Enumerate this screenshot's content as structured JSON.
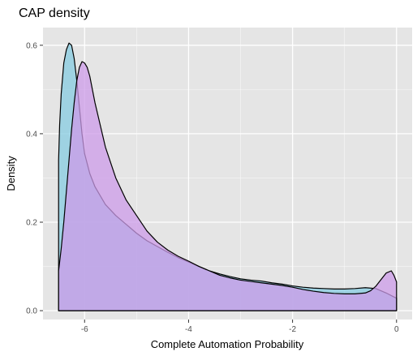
{
  "chart_data": {
    "type": "area",
    "title": "CAP density",
    "xlabel": "Complete Automation Probability",
    "ylabel": "Density",
    "xlim": [
      -6.8,
      0.3
    ],
    "ylim": [
      -0.02,
      0.64
    ],
    "x_ticks": [
      -6,
      -4,
      -2,
      0
    ],
    "x_tick_labels": [
      "-6",
      "-4",
      "-2",
      "0"
    ],
    "y_ticks": [
      0,
      0.2,
      0.4,
      0.6
    ],
    "y_tick_labels": [
      "0.0",
      "0.2",
      "0.4",
      "0.6"
    ],
    "grid": true,
    "legend": "none",
    "colors": {
      "panel": "#e5e5e5",
      "grid_major": "#ffffff",
      "series_a_fill": "#86cbe0",
      "series_b_fill": "#cc9be8",
      "overlap_fill": "#9b9ee6",
      "outline": "#000000"
    },
    "series": [
      {
        "x": [
          -6.5,
          -6.48,
          -6.45,
          -6.4,
          -6.35,
          -6.3,
          -6.25,
          -6.2,
          -6.15,
          -6.1,
          -6.05,
          -6.0,
          -5.9,
          -5.8,
          -5.6,
          -5.4,
          -5.2,
          -5.0,
          -4.8,
          -4.6,
          -4.4,
          -4.2,
          -4.0,
          -3.8,
          -3.6,
          -3.4,
          -3.2,
          -3.0,
          -2.8,
          -2.6,
          -2.4,
          -2.2,
          -2.0,
          -1.8,
          -1.6,
          -1.4,
          -1.2,
          -1.0,
          -0.8,
          -0.6,
          -0.4,
          -0.2,
          0.0
        ],
        "values": [
          0.34,
          0.42,
          0.49,
          0.56,
          0.59,
          0.605,
          0.6,
          0.57,
          0.52,
          0.46,
          0.4,
          0.355,
          0.31,
          0.28,
          0.24,
          0.215,
          0.195,
          0.175,
          0.158,
          0.145,
          0.132,
          0.12,
          0.11,
          0.1,
          0.09,
          0.083,
          0.077,
          0.072,
          0.069,
          0.067,
          0.063,
          0.06,
          0.056,
          0.053,
          0.051,
          0.05,
          0.049,
          0.049,
          0.05,
          0.052,
          0.05,
          0.04,
          0.028
        ]
      },
      {
        "x": [
          -6.5,
          -6.45,
          -6.4,
          -6.35,
          -6.3,
          -6.25,
          -6.2,
          -6.15,
          -6.1,
          -6.05,
          -6.0,
          -5.95,
          -5.9,
          -5.85,
          -5.8,
          -5.7,
          -5.6,
          -5.4,
          -5.2,
          -5.0,
          -4.8,
          -4.6,
          -4.4,
          -4.2,
          -4.0,
          -3.8,
          -3.6,
          -3.4,
          -3.2,
          -3.0,
          -2.8,
          -2.6,
          -2.4,
          -2.2,
          -2.0,
          -1.8,
          -1.6,
          -1.4,
          -1.2,
          -1.0,
          -0.8,
          -0.6,
          -0.5,
          -0.4,
          -0.3,
          -0.2,
          -0.1,
          -0.05,
          0.0
        ],
        "values": [
          0.09,
          0.14,
          0.2,
          0.27,
          0.34,
          0.41,
          0.47,
          0.52,
          0.55,
          0.563,
          0.56,
          0.55,
          0.53,
          0.5,
          0.47,
          0.42,
          0.37,
          0.3,
          0.25,
          0.215,
          0.18,
          0.155,
          0.137,
          0.123,
          0.112,
          0.1,
          0.09,
          0.08,
          0.074,
          0.069,
          0.066,
          0.063,
          0.06,
          0.057,
          0.053,
          0.048,
          0.044,
          0.041,
          0.039,
          0.038,
          0.038,
          0.04,
          0.045,
          0.055,
          0.07,
          0.085,
          0.09,
          0.08,
          0.065
        ]
      }
    ]
  }
}
